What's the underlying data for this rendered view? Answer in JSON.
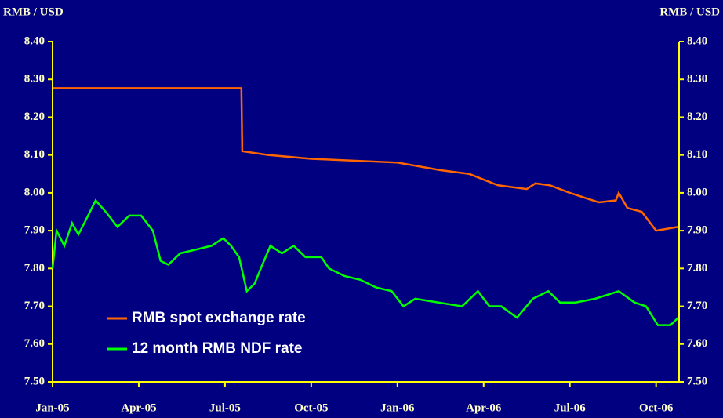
{
  "chart_data": {
    "type": "line",
    "y_label": "RMB / USD",
    "y2_label": "RMB / USD",
    "xlim": [
      0,
      21.8
    ],
    "xticks": [
      {
        "value": 0,
        "label": "Jan-05"
      },
      {
        "value": 3,
        "label": "Apr-05"
      },
      {
        "value": 6,
        "label": "Jul-05"
      },
      {
        "value": 9,
        "label": "Oct-05"
      },
      {
        "value": 12,
        "label": "Jan-06"
      },
      {
        "value": 15,
        "label": "Apr-06"
      },
      {
        "value": 18,
        "label": "Jul-06"
      },
      {
        "value": 21,
        "label": "Oct-06"
      }
    ],
    "ylim": [
      7.5,
      8.4
    ],
    "yticks": [
      {
        "value": 7.5,
        "label": "7.50"
      },
      {
        "value": 7.6,
        "label": "7.60"
      },
      {
        "value": 7.7,
        "label": "7.70"
      },
      {
        "value": 7.8,
        "label": "7.80"
      },
      {
        "value": 7.9,
        "label": "7.90"
      },
      {
        "value": 8.0,
        "label": "8.00"
      },
      {
        "value": 8.1,
        "label": "8.10"
      },
      {
        "value": 8.2,
        "label": "8.20"
      },
      {
        "value": 8.3,
        "label": "8.30"
      },
      {
        "value": 8.4,
        "label": "8.40"
      }
    ],
    "y2lim": [
      7.5,
      8.4
    ],
    "y2ticks": [
      {
        "value": 7.5,
        "label": "7.50"
      },
      {
        "value": 7.6,
        "label": "7.60"
      },
      {
        "value": 7.7,
        "label": "7.70"
      },
      {
        "value": 7.8,
        "label": "7.80"
      },
      {
        "value": 7.9,
        "label": "7.90"
      },
      {
        "value": 8.0,
        "label": "8.00"
      },
      {
        "value": 8.1,
        "label": "8.10"
      },
      {
        "value": 8.2,
        "label": "8.20"
      },
      {
        "value": 8.3,
        "label": "8.30"
      },
      {
        "value": 8.4,
        "label": "8.40"
      }
    ],
    "axis_color": "#ffff00",
    "series": [
      {
        "name": "RMB spot exchange rate",
        "color": "#ff6600",
        "x": [
          0,
          6.57,
          6.6,
          7.5,
          9,
          12,
          13.5,
          14.5,
          15.5,
          16.5,
          16.8,
          17.3,
          18,
          19,
          19.6,
          19.7,
          20,
          20.5,
          21,
          21.77
        ],
        "values": [
          8.277,
          8.277,
          8.11,
          8.1,
          8.09,
          8.08,
          8.06,
          8.05,
          8.02,
          8.01,
          8.025,
          8.02,
          8.0,
          7.975,
          7.98,
          8.0,
          7.96,
          7.95,
          7.9,
          7.91
        ]
      },
      {
        "name": "12 month RMB NDF rate",
        "color": "#00ff00",
        "x": [
          0,
          0.14,
          0.41,
          0.68,
          0.9,
          1.17,
          1.5,
          1.85,
          2.26,
          2.67,
          3.08,
          3.49,
          3.76,
          4.03,
          4.44,
          4.99,
          5.53,
          5.94,
          6.21,
          6.49,
          6.76,
          7.03,
          7.3,
          7.58,
          7.98,
          8.39,
          8.8,
          9.35,
          9.62,
          10.16,
          10.71,
          11.25,
          11.8,
          12.21,
          12.62,
          13.43,
          14.25,
          14.8,
          15.2,
          15.61,
          16.16,
          16.71,
          17.25,
          17.66,
          18.2,
          18.88,
          19.7,
          20.25,
          20.65,
          21.06,
          21.5,
          21.77
        ],
        "values": [
          7.8,
          7.9,
          7.86,
          7.92,
          7.89,
          7.93,
          7.98,
          7.95,
          7.91,
          7.94,
          7.94,
          7.9,
          7.82,
          7.81,
          7.84,
          7.85,
          7.86,
          7.88,
          7.86,
          7.83,
          7.74,
          7.76,
          7.81,
          7.86,
          7.84,
          7.86,
          7.83,
          7.83,
          7.8,
          7.78,
          7.77,
          7.75,
          7.74,
          7.7,
          7.72,
          7.71,
          7.7,
          7.74,
          7.7,
          7.7,
          7.67,
          7.72,
          7.74,
          7.71,
          7.71,
          7.72,
          7.74,
          7.71,
          7.7,
          7.65,
          7.65,
          7.67
        ]
      }
    ]
  }
}
